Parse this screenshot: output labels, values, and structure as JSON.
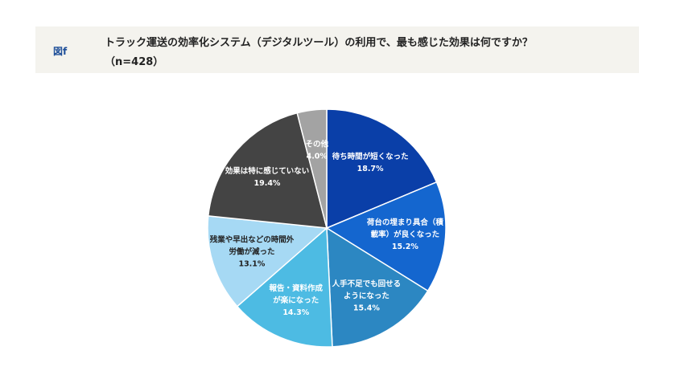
{
  "header": {
    "figure_label": "図f",
    "title": "トラック運送の効率化システム（デジタルツール）の利用で、最も感じた効果は何ですか？",
    "subtitle": "（n=428）"
  },
  "chart_data": {
    "type": "pie",
    "title": "トラック運送の効率化システム（デジタルツール）の利用で、最も感じた効果は何ですか？",
    "n_label": "（n=428）",
    "start": "12 o'clock",
    "direction": "clockwise",
    "slices": [
      {
        "label_lines": [
          "待ち時間が短くなった"
        ],
        "value": 18.7,
        "value_label": "18.7%",
        "color": "#0a3fa8",
        "text_color": "#ffffff"
      },
      {
        "label_lines": [
          "荷台の埋まり具合（積",
          "載率）が良くなった"
        ],
        "value": 15.2,
        "value_label": "15.2%",
        "color": "#1466cf",
        "text_color": "#ffffff"
      },
      {
        "label_lines": [
          "人手不足でも回せる",
          "ようになった"
        ],
        "value": 15.4,
        "value_label": "15.4%",
        "color": "#2c87c2",
        "text_color": "#ffffff"
      },
      {
        "label_lines": [
          "報告・資料作成",
          "が楽になった"
        ],
        "value": 14.3,
        "value_label": "14.3%",
        "color": "#4dbbe3",
        "text_color": "#ffffff"
      },
      {
        "label_lines": [
          "残業や早出などの時間外",
          "労働が減った"
        ],
        "value": 13.1,
        "value_label": "13.1%",
        "color": "#a6d9f4",
        "text_color": "#222222"
      },
      {
        "label_lines": [
          "効果は特に感じていない"
        ],
        "value": 19.4,
        "value_label": "19.4%",
        "color": "#444444",
        "text_color": "#ffffff"
      },
      {
        "label_lines": [
          "その他"
        ],
        "value": 4.0,
        "value_label": "4.0%",
        "color": "#a3a3a3",
        "text_color": "#ffffff"
      }
    ]
  }
}
